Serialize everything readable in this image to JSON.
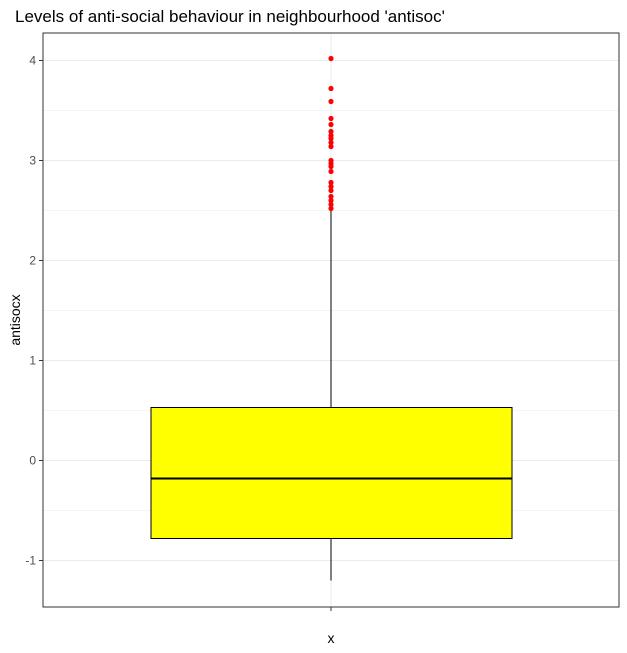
{
  "chart_data": {
    "type": "box",
    "title": "Levels of anti-social behaviour in neighbourhood 'antisoc'",
    "xlabel": "x",
    "ylabel": "antisocx",
    "categories": [
      ""
    ],
    "yticks": [
      -1,
      0,
      1,
      2,
      3,
      4
    ],
    "ylim": [
      -1.48,
      4.28
    ],
    "grid": true,
    "box": {
      "q1": -0.78,
      "median": -0.18,
      "q3": 0.53,
      "whisker_low": -1.2,
      "whisker_high": 2.5
    },
    "outliers": [
      2.52,
      2.56,
      2.6,
      2.64,
      2.7,
      2.74,
      2.78,
      2.89,
      2.94,
      2.97,
      3.0,
      3.14,
      3.18,
      3.22,
      3.25,
      3.29,
      3.36,
      3.42,
      3.59,
      3.72,
      4.02
    ],
    "colors": {
      "box_fill": "#ffff00",
      "outlier": "#ff0000",
      "line": "#000000",
      "grid": "#ebebeb"
    }
  }
}
